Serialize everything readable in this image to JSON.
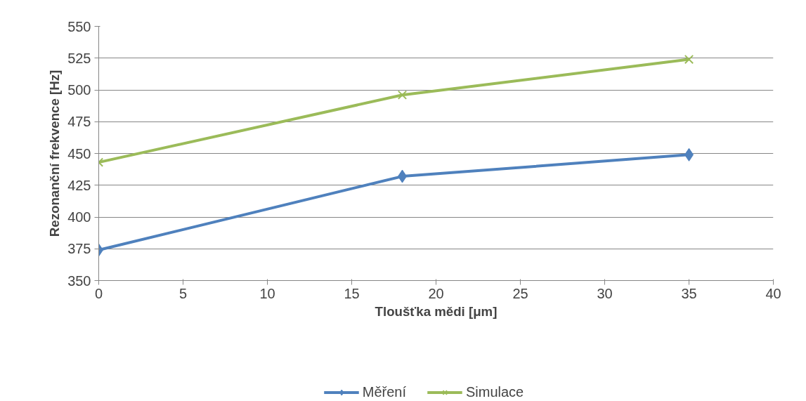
{
  "chart_data": {
    "type": "line",
    "xlabel": "Tloušťka mědi [μm]",
    "ylabel": "Rezonanční frekvence [Hz]",
    "x": [
      0,
      18,
      35
    ],
    "series": [
      {
        "name": "Měření",
        "color": "#4f81bd",
        "values": [
          374,
          432,
          449
        ],
        "marker": "diamond"
      },
      {
        "name": "Simulace",
        "color": "#9bbb59",
        "values": [
          443,
          496,
          524
        ],
        "marker": "cross"
      }
    ],
    "xlim": [
      0,
      40
    ],
    "xticks": [
      0,
      5,
      10,
      15,
      20,
      25,
      30,
      35,
      40
    ],
    "ylim": [
      350,
      550
    ],
    "yticks": [
      350,
      375,
      400,
      425,
      450,
      475,
      500,
      525,
      550
    ],
    "grid": "y",
    "legend": "bottom",
    "line_style": "solid"
  }
}
